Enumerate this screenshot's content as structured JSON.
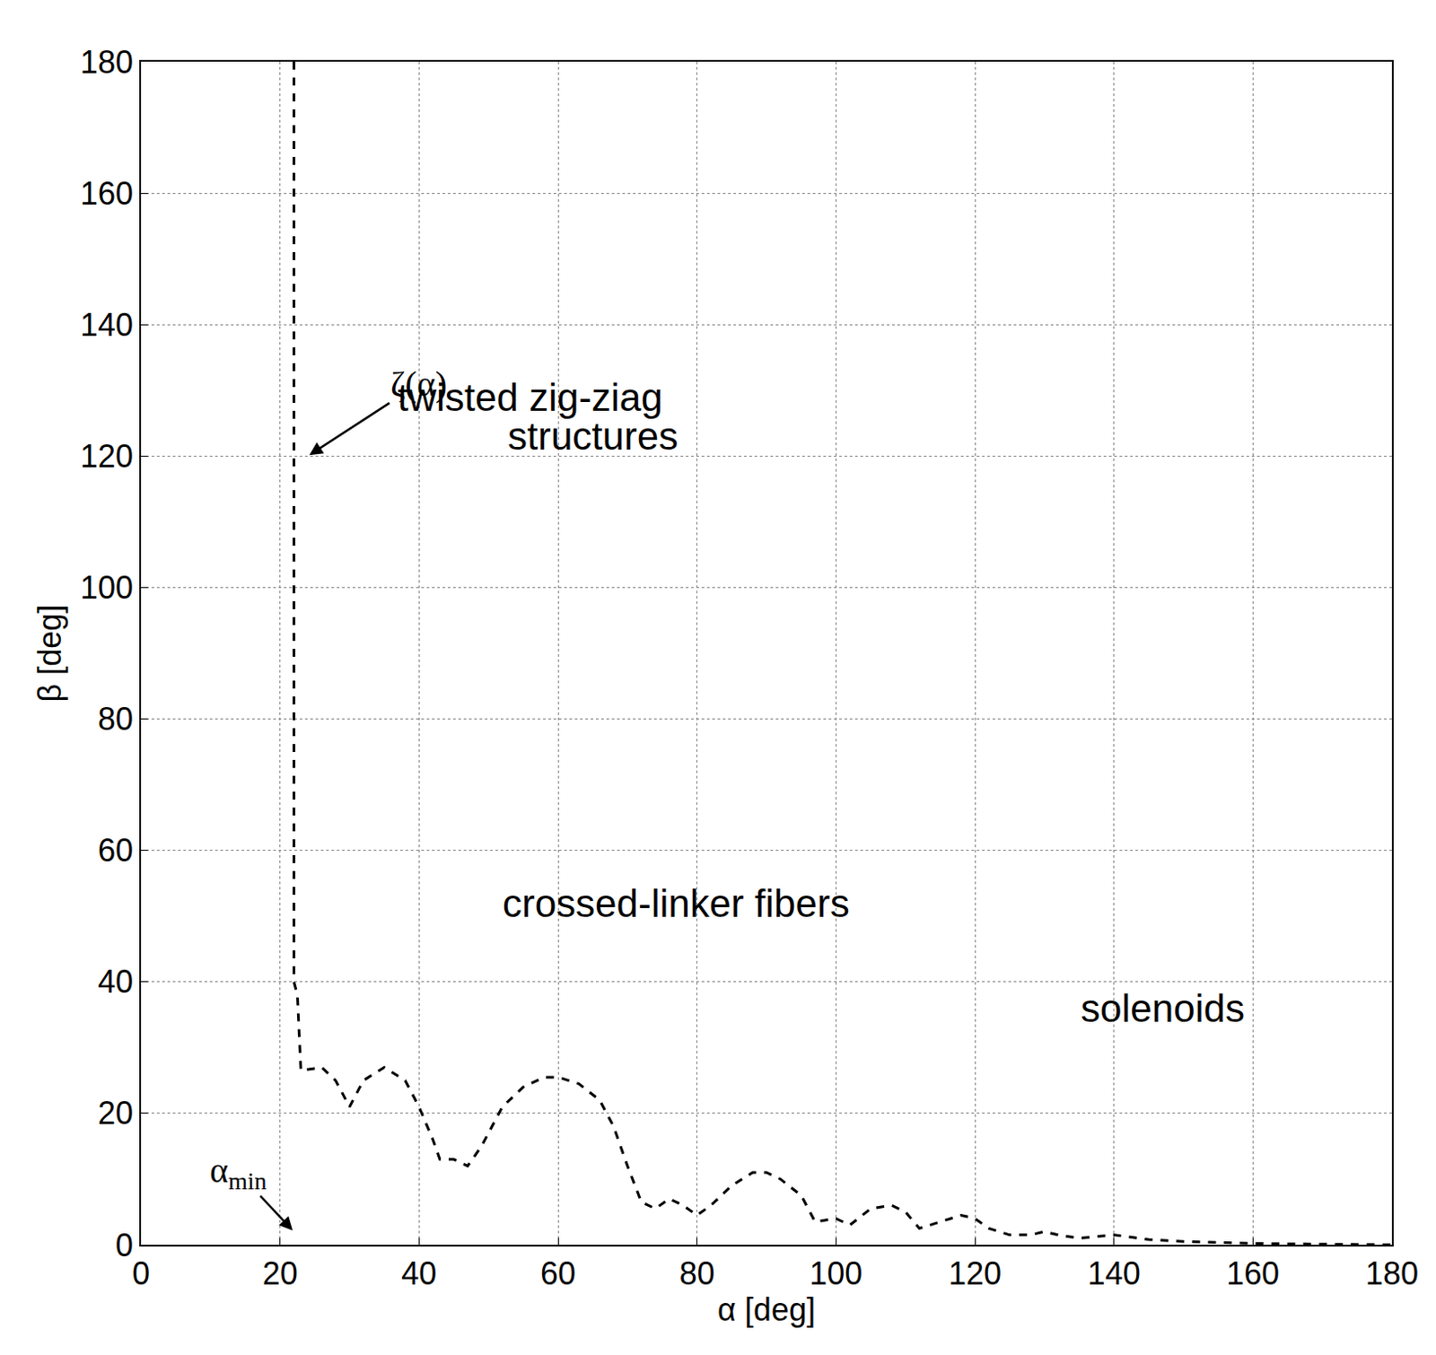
{
  "chart_data": {
    "type": "line",
    "x_label": "α [deg]",
    "y_label": "β [deg]",
    "xlim": [
      0,
      180
    ],
    "ylim": [
      0,
      180
    ],
    "xticks": [
      0,
      20,
      40,
      60,
      80,
      100,
      120,
      140,
      160,
      180
    ],
    "yticks": [
      0,
      20,
      40,
      60,
      80,
      100,
      120,
      140,
      160,
      180
    ],
    "grid": true,
    "series": [
      {
        "name": "ζ(α)",
        "color": "#000000",
        "line_style": "dash",
        "x": [
          22,
          22,
          22.5,
          23,
          26,
          28,
          30,
          32,
          35,
          38,
          40,
          42,
          43,
          45,
          47,
          49,
          52,
          55,
          58,
          60,
          63,
          66,
          68,
          70,
          72,
          74,
          76,
          78,
          80,
          82,
          85,
          88,
          90,
          92,
          95,
          97,
          100,
          102,
          105,
          108,
          110,
          112,
          115,
          118,
          120,
          122,
          125,
          128,
          130,
          132,
          135,
          140,
          145,
          150,
          160,
          170,
          180
        ],
        "values": [
          180,
          40,
          38,
          26.5,
          27,
          25,
          21,
          25,
          27,
          25,
          21,
          16,
          13,
          13,
          12,
          15,
          21,
          24,
          25.5,
          25.5,
          24.5,
          22,
          18,
          12,
          6.5,
          5.5,
          7,
          6,
          4.5,
          6,
          9,
          11,
          11,
          10,
          7.5,
          3.5,
          4,
          3,
          5.5,
          6,
          5,
          2.5,
          3.5,
          4.5,
          4,
          2.5,
          1.5,
          1.5,
          2,
          1.5,
          1,
          1.5,
          0.8,
          0.5,
          0.2,
          0.1,
          0
        ]
      }
    ],
    "annotations": [
      {
        "text": "twisted zig-ziag",
        "x": 56,
        "y": 129
      },
      {
        "text": "structures",
        "x": 65,
        "y": 123
      },
      {
        "text": "crossed-linker fibers",
        "x": 77,
        "y": 52
      },
      {
        "text": "solenoids",
        "x": 147,
        "y": 36
      },
      {
        "text": "ζ(α)",
        "x": 40,
        "y": 131,
        "arrow_x": 24,
        "arrow_y": 120
      },
      {
        "text": "α",
        "sub": "min",
        "x": 14,
        "y": 11,
        "arrow_x": 22,
        "arrow_y": 2
      }
    ]
  }
}
